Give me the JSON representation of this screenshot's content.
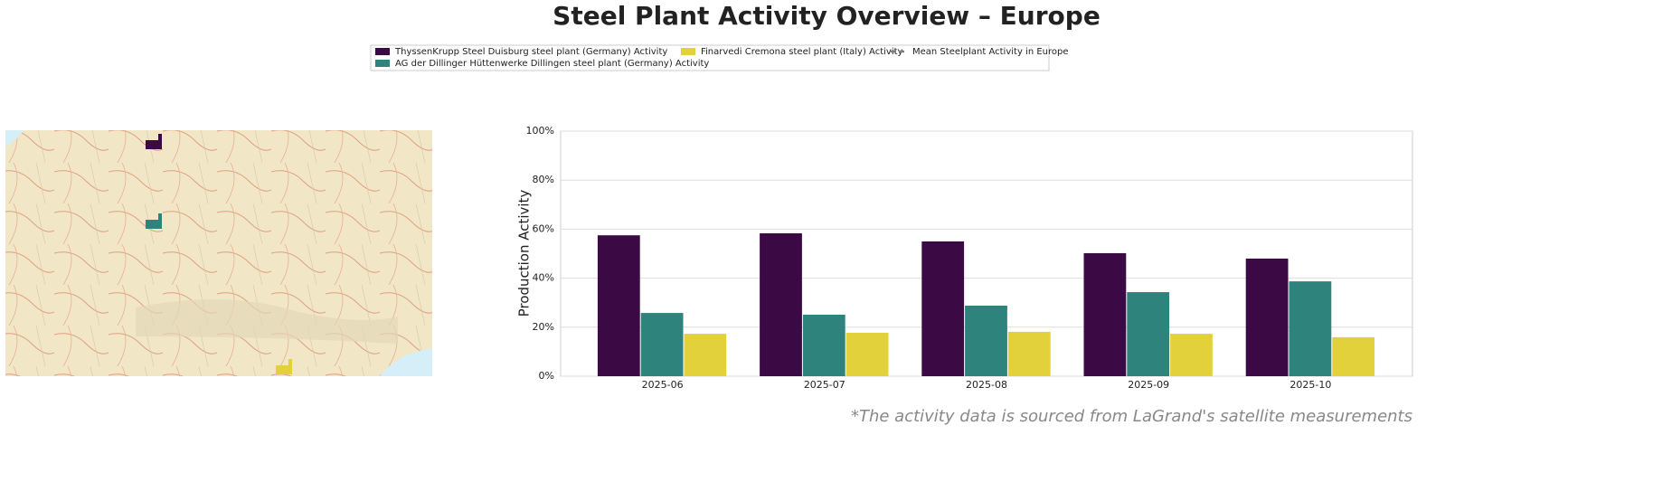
{
  "chart_data": {
    "type": "bar",
    "title": "Steel Plant Activity Overview – Europe",
    "ylabel": "Production Activity",
    "footnote": "*The activity data is sourced from LaGrand's satellite measurements",
    "categories": [
      "2025-06",
      "2025-07",
      "2025-08",
      "2025-09",
      "2025-10"
    ],
    "series": [
      {
        "name": "ThyssenKrupp Steel Duisburg steel plant (Germany) Activity",
        "color": "#3b0a45",
        "values": [
          57.5,
          58.3,
          55,
          50.2,
          48
        ]
      },
      {
        "name": "AG der Dillinger Hüttenwerke Dillingen steel plant (Germany) Activity",
        "color": "#2e837d",
        "values": [
          25.8,
          25.1,
          28.8,
          34.3,
          38.7
        ]
      },
      {
        "name": "Finarvedi Cremona steel plant (Italy) Activity",
        "color": "#e2d13b",
        "values": [
          17.3,
          17.7,
          18.1,
          17.3,
          15.9
        ]
      }
    ],
    "reference_line": {
      "name": "Mean Steelplant Activity in Europe",
      "color": "#808080"
    },
    "ylim": [
      0,
      100
    ],
    "yticks": [
      {
        "value": 0,
        "label": "0%"
      },
      {
        "value": 20,
        "label": "20%"
      },
      {
        "value": 40,
        "label": "40%"
      },
      {
        "value": 60,
        "label": "60%"
      },
      {
        "value": 80,
        "label": "80%"
      },
      {
        "value": 100,
        "label": "100%"
      }
    ],
    "grid": true
  }
}
